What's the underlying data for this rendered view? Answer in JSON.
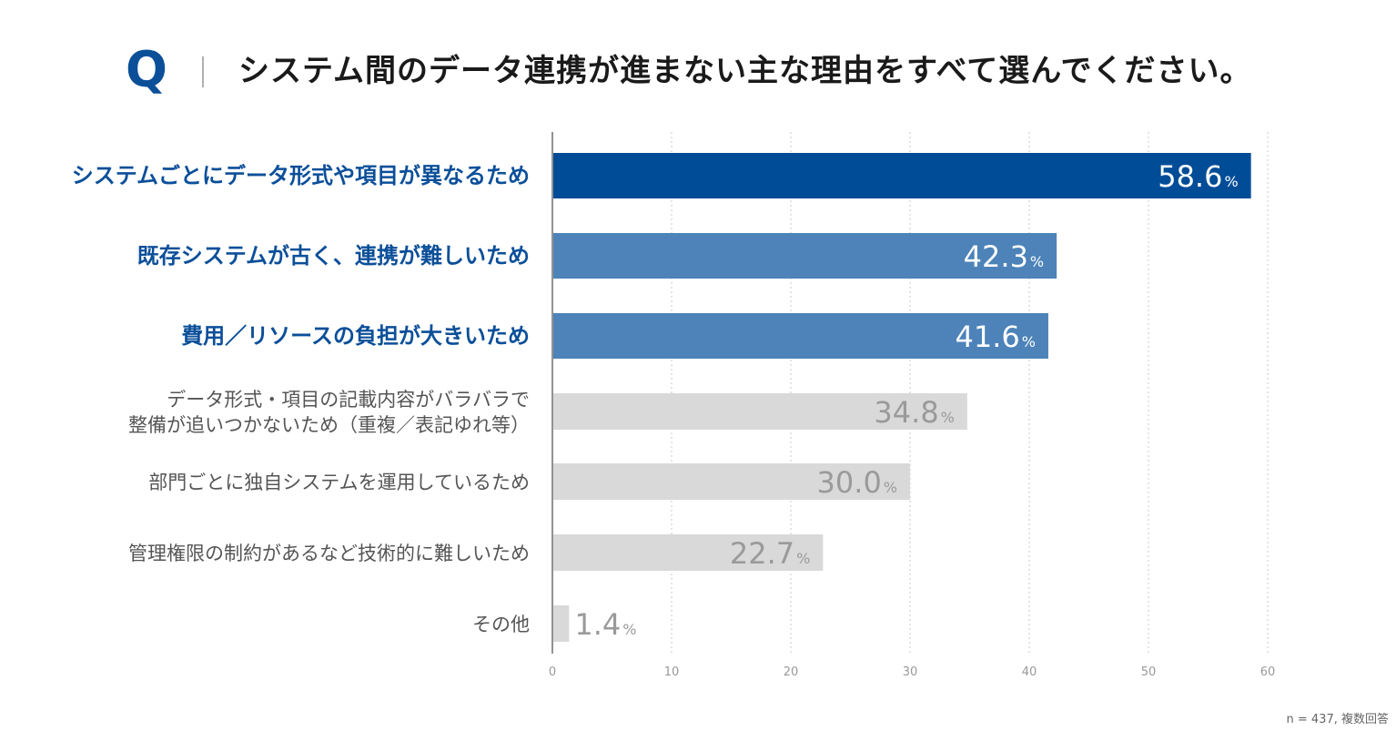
{
  "header": {
    "q_label": "Q",
    "question": "システム間のデータ連携が進まない主な理由をすべて選んでください。"
  },
  "footnote": "n = 437, 複数回答",
  "colors": {
    "highlight_dark": "#004c97",
    "highlight_medium": "#4d83b8",
    "neutral_bar": "#d9d9d9",
    "label_highlight": "#0b4f99",
    "label_neutral": "#555555",
    "value_on_dark": "#ffffff",
    "value_on_light": "#9a9a9a"
  },
  "chart_data": {
    "type": "bar",
    "orientation": "horizontal",
    "title": "システム間のデータ連携が進まない主な理由をすべて選んでください。",
    "categories": [
      [
        "システムごとにデータ形式や項目が異なるため"
      ],
      [
        "既存システムが古く、連携が難しいため"
      ],
      [
        "費用／リソースの負担が大きいため"
      ],
      [
        "データ形式・項目の記載内容がバラバラで",
        "整備が追いつかないため（重複／表記ゆれ等）"
      ],
      [
        "部門ごとに独自システムを運用しているため"
      ],
      [
        "管理権限の制約があるなど技術的に難しいため"
      ],
      [
        "その他"
      ]
    ],
    "values": [
      58.6,
      42.3,
      41.6,
      34.8,
      30.0,
      22.7,
      1.4
    ],
    "value_suffix": "%",
    "highlight": [
      "dark",
      "medium",
      "medium",
      "none",
      "none",
      "none",
      "none"
    ],
    "xlim": [
      0,
      60
    ],
    "x_ticks": [
      0,
      10,
      20,
      30,
      40,
      50,
      60
    ],
    "grid": "vertical dotted",
    "xlabel": "",
    "ylabel": ""
  }
}
